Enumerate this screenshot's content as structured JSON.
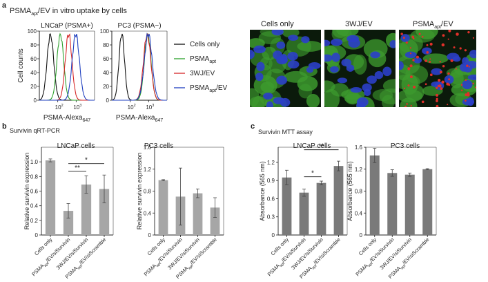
{
  "panels": {
    "a": {
      "letter": "a",
      "title_main": "PSMA",
      "title_sub": "apt",
      "title_rest": "/EV in vitro uptake by cells"
    },
    "b": {
      "letter": "b",
      "title": "Survivin qRT-PCR"
    },
    "c": {
      "letter": "c",
      "title": "Survivin MTT assay"
    }
  },
  "flow": {
    "ylabel": "Cell counts",
    "xlabel_main": "PSMA-Alexa",
    "xlabel_sub": "647",
    "yticks": [
      "0",
      "20",
      "40",
      "60",
      "80",
      "100"
    ],
    "xticks": [
      {
        "base": "10",
        "exp": "2"
      },
      {
        "base": "10",
        "exp": "3"
      }
    ],
    "plots": [
      {
        "title": "LNCaP (PSMA+)"
      },
      {
        "title": "PC3 (PSMA−)"
      }
    ],
    "legend": [
      {
        "main": "Cells only",
        "sub": "",
        "rest": "",
        "color": "#111111"
      },
      {
        "main": "PSMA",
        "sub": "apt",
        "rest": "",
        "color": "#2ca02c"
      },
      {
        "main": "3WJ/EV",
        "sub": "",
        "rest": "",
        "color": "#d62728"
      },
      {
        "main": "PSMA",
        "sub": "apt",
        "rest": "/EV",
        "color": "#1f3fbf"
      }
    ]
  },
  "micro": {
    "labels": [
      {
        "main": "Cells only",
        "sub": "",
        "rest": ""
      },
      {
        "main": "3WJ/EV",
        "sub": "",
        "rest": ""
      },
      {
        "main": "PSMA",
        "sub": "apt",
        "rest": "/EV"
      }
    ]
  },
  "categories": [
    {
      "main": "Cells only",
      "sub": "",
      "rest": ""
    },
    {
      "main": "PSMA",
      "sub": "apt",
      "rest": "/EV/siSurvivin"
    },
    {
      "main": "3WJ/EV/siSurvivin",
      "sub": "",
      "rest": ""
    },
    {
      "main": "PSMA",
      "sub": "apt",
      "rest": "/EV/siScramble"
    }
  ],
  "chart_data": [
    {
      "type": "bar",
      "title": "LNCaP cells",
      "ylabel": "Relative survivin expression",
      "ylim": [
        0,
        1.2
      ],
      "yticks": [
        "0",
        "0.2",
        "0.4",
        "0.6",
        "0.8",
        "1.0"
      ],
      "categories": [
        "Cells only",
        "PSMAapt/EV/siSurvivin",
        "3WJ/EV/siSurvivin",
        "PSMAapt/EV/siScramble"
      ],
      "values": [
        1.02,
        0.33,
        0.69,
        0.63
      ],
      "errors": [
        0.02,
        0.1,
        0.12,
        0.19
      ],
      "color": "#a6a6a6",
      "significance": [
        {
          "from": 1,
          "to": 2,
          "label": "**"
        },
        {
          "from": 1,
          "to": 3,
          "label": "*"
        }
      ]
    },
    {
      "type": "bar",
      "title": "PC3 cells",
      "ylabel": "Relative survivin expression",
      "ylim": [
        0,
        1.6
      ],
      "yticks": [
        "0",
        "0.4",
        "0.8",
        "1.2",
        "1.6"
      ],
      "categories": [
        "Cells only",
        "PSMAapt/EV/siSurvivin",
        "3WJ/EV/siSurvivin",
        "PSMAapt/EV/siScramble"
      ],
      "values": [
        1.0,
        0.7,
        0.76,
        0.5
      ],
      "errors": [
        0.01,
        0.52,
        0.08,
        0.18
      ],
      "color": "#a6a6a6",
      "significance": []
    },
    {
      "type": "bar",
      "title": "LNCaP cells",
      "ylabel": "Absorbance (565 nm)",
      "ylim": [
        0,
        1.45
      ],
      "yticks": [
        "0",
        "0.3",
        "0.6",
        "0.9",
        "1.2"
      ],
      "categories": [
        "Cells only",
        "PSMAapt/EV/siSurvivin",
        "3WJ/EV/siSurvivin",
        "PSMAapt/EV/siScramble"
      ],
      "values": [
        0.95,
        0.7,
        0.86,
        1.14
      ],
      "errors": [
        0.12,
        0.06,
        0.03,
        0.08
      ],
      "color": "#7a7a7a",
      "significance": [
        {
          "from": 1,
          "to": 2,
          "label": "*"
        },
        {
          "from": 1,
          "to": 3,
          "label": "**"
        }
      ]
    },
    {
      "type": "bar",
      "title": "PC3 cells",
      "ylabel": "Absorbance (565 nm)",
      "ylim": [
        0,
        1.6
      ],
      "yticks": [
        "0",
        "0.4",
        "0.8",
        "1.2",
        "1.6"
      ],
      "categories": [
        "Cells only",
        "PSMAapt/EV/siSurvivin",
        "3WJ/EV/siSurvivin",
        "PSMAapt/EV/siScramble"
      ],
      "values": [
        1.45,
        1.13,
        1.1,
        1.2
      ],
      "errors": [
        0.13,
        0.06,
        0.03,
        0.01
      ],
      "color": "#7a7a7a",
      "significance": []
    }
  ]
}
